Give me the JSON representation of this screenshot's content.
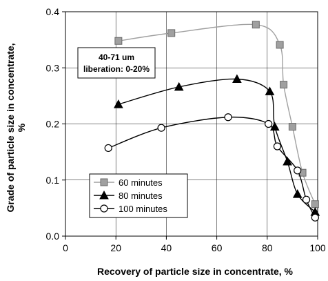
{
  "chart_data": {
    "type": "line",
    "title": "",
    "xlabel": "Recovery of particle size in concentrate, %",
    "ylabel_lines": [
      "Grade of particle size in concentrate,",
      "%"
    ],
    "xlim": [
      0,
      100
    ],
    "ylim": [
      0,
      0.4
    ],
    "x_ticks": [
      "0",
      "20",
      "40",
      "60",
      "80",
      "100"
    ],
    "y_ticks": [
      "0.0",
      "0.1",
      "0.2",
      "0.3",
      "0.4"
    ],
    "grid": true,
    "legend_position": "bottom-left",
    "annotation": [
      "40-71 um",
      "liberation: 0-20%"
    ],
    "series": [
      {
        "name": "60 minutes",
        "marker": "square",
        "color": "#a0a0a0",
        "x": [
          21,
          42,
          75.5,
          85,
          86.5,
          90,
          94,
          99
        ],
        "y": [
          0.348,
          0.362,
          0.377,
          0.341,
          0.27,
          0.195,
          0.113,
          0.057
        ]
      },
      {
        "name": "80 minutes",
        "marker": "triangle",
        "color": "#000000",
        "x": [
          21,
          45,
          68,
          81,
          83,
          88,
          92,
          99
        ],
        "y": [
          0.235,
          0.266,
          0.28,
          0.258,
          0.195,
          0.133,
          0.075,
          0.043
        ]
      },
      {
        "name": "100 minutes",
        "marker": "circle",
        "color": "#000000",
        "x": [
          17,
          38,
          64.5,
          80.5,
          84,
          92,
          95.5,
          99
        ],
        "y": [
          0.157,
          0.193,
          0.212,
          0.2,
          0.16,
          0.117,
          0.065,
          0.033
        ]
      }
    ]
  }
}
